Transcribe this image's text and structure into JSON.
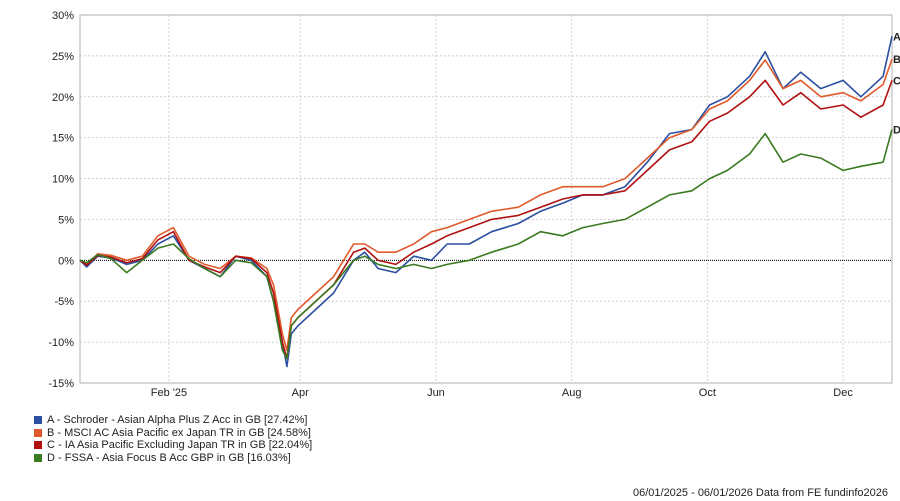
{
  "chart_data": {
    "type": "line",
    "ylim": [
      -15,
      30
    ],
    "yticks": [
      30,
      25,
      20,
      15,
      10,
      5,
      0,
      -5,
      -10,
      -15
    ],
    "ytick_labels": [
      "30%",
      "25%",
      "20%",
      "15%",
      "10%",
      "5%",
      "0%",
      "-5%",
      "-10%",
      "-15%"
    ],
    "xlim": [
      "2025-01-06",
      "2026-01-06"
    ],
    "xticks": [
      "2025-02-15",
      "2025-04-15",
      "2025-06-15",
      "2025-08-15",
      "2025-10-15",
      "2025-12-15"
    ],
    "xtick_labels": [
      "Feb '25",
      "Apr",
      "Jun",
      "Aug",
      "Oct",
      "Dec"
    ],
    "grid": true,
    "zero_line": true,
    "legend_position": "bottom-left",
    "series": [
      {
        "name": "A - Schroder - Asian Alpha Plus Z Acc in GB [27.42%]",
        "end_label": "A",
        "color": "#2a4ea0",
        "x": [
          "2025-01-06",
          "2025-01-09",
          "2025-01-14",
          "2025-01-20",
          "2025-01-27",
          "2025-02-03",
          "2025-02-10",
          "2025-02-17",
          "2025-02-24",
          "2025-03-03",
          "2025-03-10",
          "2025-03-17",
          "2025-03-24",
          "2025-03-31",
          "2025-04-03",
          "2025-04-07",
          "2025-04-09",
          "2025-04-11",
          "2025-04-14",
          "2025-04-22",
          "2025-04-30",
          "2025-05-09",
          "2025-05-14",
          "2025-05-20",
          "2025-05-28",
          "2025-06-05",
          "2025-06-13",
          "2025-06-20",
          "2025-06-30",
          "2025-07-10",
          "2025-07-22",
          "2025-08-01",
          "2025-08-11",
          "2025-08-20",
          "2025-08-29",
          "2025-09-08",
          "2025-09-18",
          "2025-09-28",
          "2025-10-08",
          "2025-10-16",
          "2025-10-24",
          "2025-11-03",
          "2025-11-10",
          "2025-11-18",
          "2025-11-26",
          "2025-12-05",
          "2025-12-15",
          "2025-12-23",
          "2026-01-02",
          "2026-01-06"
        ],
        "y": [
          0,
          -0.8,
          0.5,
          0.3,
          -0.5,
          0,
          2,
          3,
          0,
          -1,
          -2,
          0.5,
          0,
          -2,
          -5,
          -10,
          -13,
          -9,
          -8,
          -6,
          -4,
          0,
          1,
          -1,
          -1.5,
          0.5,
          0,
          2,
          2,
          3.5,
          4.5,
          6,
          7,
          8,
          8,
          9,
          12,
          15.5,
          16,
          19,
          20,
          22.5,
          25.5,
          21,
          23,
          21,
          22,
          20,
          22.5,
          27.4
        ]
      },
      {
        "name": "B - MSCI AC Asia Pacific ex Japan TR in GB [24.58%]",
        "end_label": "B",
        "color": "#e0592b",
        "x": [
          "2025-01-06",
          "2025-01-09",
          "2025-01-14",
          "2025-01-20",
          "2025-01-27",
          "2025-02-03",
          "2025-02-10",
          "2025-02-17",
          "2025-02-24",
          "2025-03-03",
          "2025-03-10",
          "2025-03-17",
          "2025-03-24",
          "2025-03-31",
          "2025-04-03",
          "2025-04-07",
          "2025-04-09",
          "2025-04-11",
          "2025-04-14",
          "2025-04-22",
          "2025-04-30",
          "2025-05-09",
          "2025-05-14",
          "2025-05-20",
          "2025-05-28",
          "2025-06-05",
          "2025-06-13",
          "2025-06-20",
          "2025-06-30",
          "2025-07-10",
          "2025-07-22",
          "2025-08-01",
          "2025-08-11",
          "2025-08-20",
          "2025-08-29",
          "2025-09-08",
          "2025-09-18",
          "2025-09-28",
          "2025-10-08",
          "2025-10-16",
          "2025-10-24",
          "2025-11-03",
          "2025-11-10",
          "2025-11-18",
          "2025-11-26",
          "2025-12-05",
          "2025-12-15",
          "2025-12-23",
          "2026-01-02",
          "2026-01-06"
        ],
        "y": [
          0,
          -0.5,
          0.8,
          0.6,
          0,
          0.5,
          3,
          4,
          0.5,
          -0.5,
          -1,
          0.5,
          0.3,
          -1,
          -3,
          -9,
          -11,
          -7,
          -6,
          -4,
          -2,
          2,
          2,
          1,
          1,
          2,
          3.5,
          4,
          5,
          6,
          6.5,
          8,
          9,
          9,
          9,
          10,
          12.5,
          15,
          16,
          18.5,
          19.5,
          22,
          24.5,
          21,
          22,
          20,
          20.5,
          19.5,
          21.5,
          24.6
        ]
      },
      {
        "name": "C - IA Asia Pacific Excluding Japan TR in GB [22.04%]",
        "end_label": "C",
        "color": "#b01010",
        "x": [
          "2025-01-06",
          "2025-01-09",
          "2025-01-14",
          "2025-01-20",
          "2025-01-27",
          "2025-02-03",
          "2025-02-10",
          "2025-02-17",
          "2025-02-24",
          "2025-03-03",
          "2025-03-10",
          "2025-03-17",
          "2025-03-24",
          "2025-03-31",
          "2025-04-03",
          "2025-04-07",
          "2025-04-09",
          "2025-04-11",
          "2025-04-14",
          "2025-04-22",
          "2025-04-30",
          "2025-05-09",
          "2025-05-14",
          "2025-05-20",
          "2025-05-28",
          "2025-06-05",
          "2025-06-13",
          "2025-06-20",
          "2025-06-30",
          "2025-07-10",
          "2025-07-22",
          "2025-08-01",
          "2025-08-11",
          "2025-08-20",
          "2025-08-29",
          "2025-09-08",
          "2025-09-18",
          "2025-09-28",
          "2025-10-08",
          "2025-10-16",
          "2025-10-24",
          "2025-11-03",
          "2025-11-10",
          "2025-11-18",
          "2025-11-26",
          "2025-12-05",
          "2025-12-15",
          "2025-12-23",
          "2026-01-02",
          "2026-01-06"
        ],
        "y": [
          0,
          -0.6,
          0.6,
          0.4,
          -0.3,
          0.2,
          2.5,
          3.5,
          0,
          -0.8,
          -1.5,
          0.5,
          0.2,
          -1.5,
          -4,
          -10,
          -12,
          -8,
          -7,
          -5,
          -3,
          1,
          1.5,
          0,
          -0.5,
          1,
          2,
          3,
          4,
          5,
          5.5,
          6.5,
          7.5,
          8,
          8,
          8.5,
          11,
          13.5,
          14.5,
          17,
          18,
          20,
          22,
          19,
          20.5,
          18.5,
          19,
          17.5,
          19,
          22
        ]
      },
      {
        "name": "D - FSSA - Asia Focus B Acc GBP in GB [16.03%]",
        "end_label": "D",
        "color": "#3a7a20",
        "x": [
          "2025-01-06",
          "2025-01-09",
          "2025-01-14",
          "2025-01-20",
          "2025-01-27",
          "2025-02-03",
          "2025-02-10",
          "2025-02-17",
          "2025-02-24",
          "2025-03-03",
          "2025-03-10",
          "2025-03-17",
          "2025-03-24",
          "2025-03-31",
          "2025-04-03",
          "2025-04-07",
          "2025-04-09",
          "2025-04-11",
          "2025-04-14",
          "2025-04-22",
          "2025-04-30",
          "2025-05-09",
          "2025-05-14",
          "2025-05-20",
          "2025-05-28",
          "2025-06-05",
          "2025-06-13",
          "2025-06-20",
          "2025-06-30",
          "2025-07-10",
          "2025-07-22",
          "2025-08-01",
          "2025-08-11",
          "2025-08-20",
          "2025-08-29",
          "2025-09-08",
          "2025-09-18",
          "2025-09-28",
          "2025-10-08",
          "2025-10-16",
          "2025-10-24",
          "2025-11-03",
          "2025-11-10",
          "2025-11-18",
          "2025-11-26",
          "2025-12-05",
          "2025-12-15",
          "2025-12-23",
          "2026-01-02",
          "2026-01-06"
        ],
        "y": [
          0,
          -0.3,
          0.7,
          0.2,
          -1.5,
          0,
          1.5,
          2,
          0.2,
          -1,
          -2,
          0,
          -0.3,
          -2,
          -5,
          -11,
          -12,
          -8,
          -7,
          -5,
          -3,
          0,
          0.5,
          -0.5,
          -1,
          -0.5,
          -1,
          -0.5,
          0,
          1,
          2,
          3.5,
          3,
          4,
          4.5,
          5,
          6.5,
          8,
          8.5,
          10,
          11,
          13,
          15.5,
          12,
          13,
          12.5,
          11,
          11.5,
          12,
          16
        ]
      }
    ]
  },
  "footer_text": "06/01/2025 - 06/01/2026 Data from FE fundinfo2026"
}
